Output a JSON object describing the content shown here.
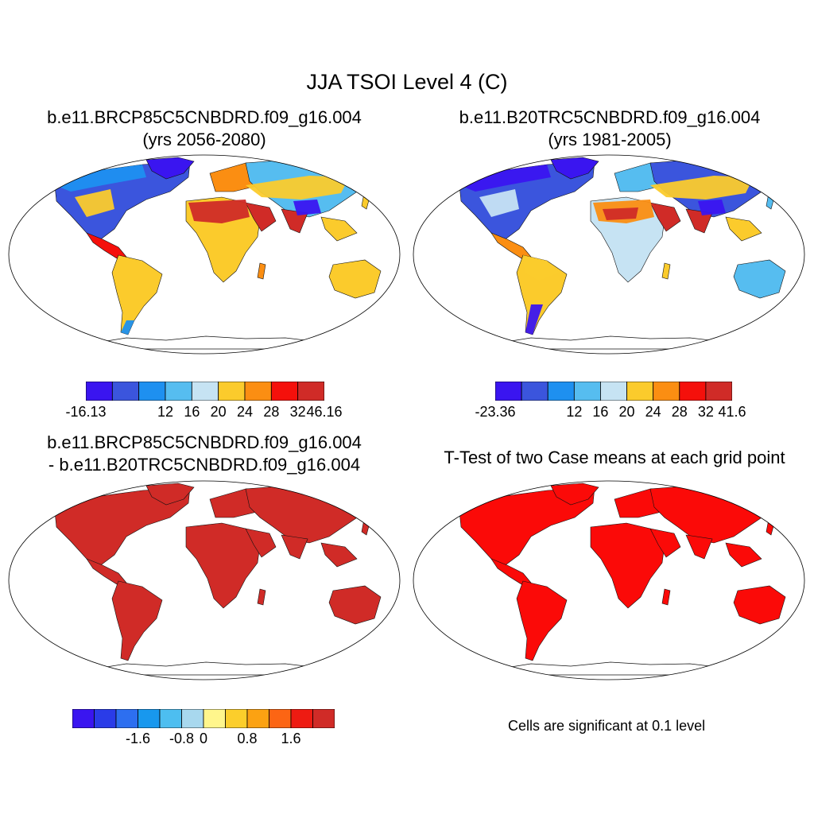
{
  "main_title": "JJA TSOI Level 4 (C)",
  "panels": [
    {
      "title_line1": "b.e11.BRCP85C5CNBDRD.f09_g16.004",
      "title_line2": "(yrs 2056-2080)",
      "palette": [
        "#3a15f0",
        "#3b55dd",
        "#1e90f0",
        "#56bdf0",
        "#c6e3f3",
        "#fbcb2c",
        "#fb8e12",
        "#f5100b",
        "#d02b27"
      ],
      "colorbar_labels": [
        "-16.13",
        "12",
        "16",
        "20",
        "24",
        "28",
        "32",
        "46.16"
      ]
    },
    {
      "title_line1": "b.e11.B20TRC5CNBDRD.f09_g16.004",
      "title_line2": "(yrs 1981-2005)",
      "palette": [
        "#3a15f0",
        "#3b55dd",
        "#1e90f0",
        "#56bdf0",
        "#c6e3f3",
        "#fbcb2c",
        "#fb8e12",
        "#f5100b",
        "#d02b27"
      ],
      "colorbar_labels": [
        "-23.36",
        "12",
        "16",
        "20",
        "24",
        "28",
        "32",
        "41.6"
      ]
    },
    {
      "title_line1": "b.e11.BRCP85C5CNBDRD.f09_g16.004",
      "title_line2": "- b.e11.B20TRC5CNBDRD.f09_g16.004",
      "palette": [
        "#3a15f0",
        "#2a3ce8",
        "#2d6ff0",
        "#1898ee",
        "#4dbef0",
        "#a8d8ee",
        "#fff68c",
        "#fcce2b",
        "#fca212",
        "#fc6514",
        "#ee1b12",
        "#d02b27"
      ],
      "colorbar_labels": [
        "-1.6",
        "-0.8",
        "0",
        "0.8",
        "1.6"
      ]
    },
    {
      "title_line1": "T-Test of two Case means at each grid point",
      "note": "Cells are significant at 0.1 level"
    }
  ]
}
